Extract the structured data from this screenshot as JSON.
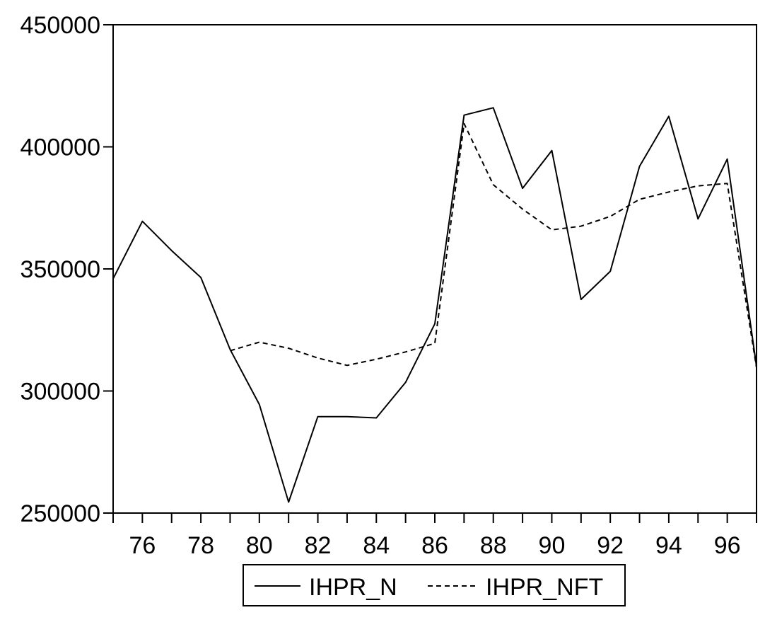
{
  "chart_data": {
    "type": "line",
    "title": "",
    "xlabel": "",
    "ylabel": "",
    "x": [
      75,
      76,
      77,
      78,
      79,
      80,
      81,
      82,
      83,
      84,
      85,
      86,
      87,
      88,
      89,
      90,
      91,
      92,
      93,
      94,
      95,
      96,
      97
    ],
    "xlim": [
      75,
      97
    ],
    "ylim": [
      250000,
      450000
    ],
    "yticks": [
      250000,
      300000,
      350000,
      400000,
      450000
    ],
    "ytick_labels": [
      "250000",
      "300000",
      "350000",
      "400000",
      "450000"
    ],
    "xticks": [
      76,
      78,
      80,
      82,
      84,
      86,
      88,
      90,
      92,
      94,
      96
    ],
    "xtick_labels": [
      "76",
      "78",
      "80",
      "82",
      "84",
      "86",
      "88",
      "90",
      "92",
      "94",
      "96"
    ],
    "grid": false,
    "legend_position": "bottom-center",
    "series": [
      {
        "name": "IHPR_N",
        "style": "solid",
        "color": "#000000",
        "values": [
          346000,
          369500,
          357500,
          346500,
          317000,
          294500,
          254500,
          289500,
          289500,
          289000,
          303500,
          327500,
          413000,
          416000,
          383000,
          398500,
          337500,
          349000,
          392000,
          412500,
          370500,
          395000,
          310000
        ]
      },
      {
        "name": "IHPR_NFT",
        "style": "dashed",
        "color": "#000000",
        "values": [
          null,
          null,
          null,
          null,
          316500,
          320000,
          317500,
          313500,
          310500,
          313000,
          316000,
          319500,
          409500,
          384500,
          374500,
          366000,
          367500,
          371500,
          378500,
          381500,
          384000,
          385000,
          309500
        ]
      }
    ]
  }
}
